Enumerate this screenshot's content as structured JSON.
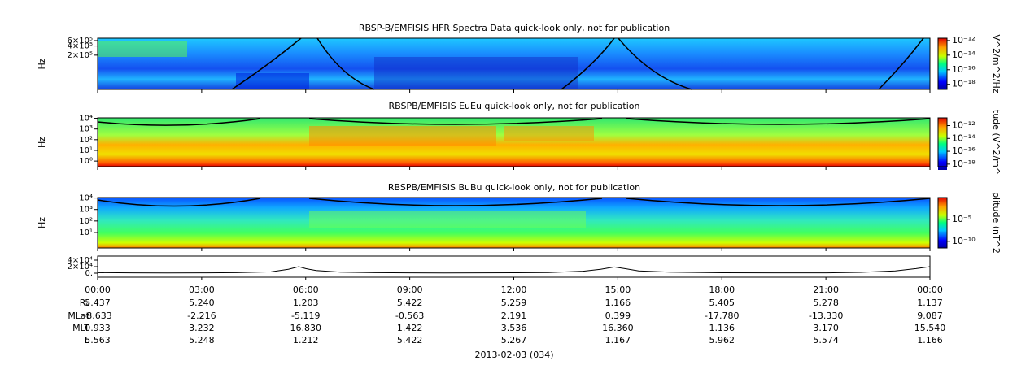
{
  "chart_data": [
    {
      "type": "spectrogram",
      "title": "RBSP-B/EMFISIS  HFR Spectra Data quick-look only, not for publication",
      "ylabel": "Hz",
      "log_y": true,
      "ylim": [
        15000,
        720000
      ],
      "yticks": [
        {
          "value": 200000,
          "label": "2×10⁵"
        },
        {
          "value": 400000,
          "label": "4×10⁵"
        },
        {
          "value": 600000,
          "label": "6×10⁵"
        }
      ],
      "colorbar": {
        "label": "V^2/m^2/Hz",
        "log": true,
        "clim": [
          2e-19,
          2.1e-12
        ],
        "ticks": [
          {
            "value": 1e-12,
            "label": "10⁻¹²"
          },
          {
            "value": 1e-14,
            "label": "10⁻¹⁴"
          },
          {
            "value": 1e-16,
            "label": "10⁻¹⁶"
          },
          {
            "value": 1e-18,
            "label": "10⁻¹⁸"
          }
        ]
      }
    },
    {
      "type": "spectrogram",
      "title": "RBSPB/EMFISIS  EuEu quick-look only, not for publication",
      "ylabel": "Hz",
      "log_y": true,
      "ylim": [
        0.3,
        11000
      ],
      "yticks": [
        {
          "value": 1,
          "label": "10⁰"
        },
        {
          "value": 10,
          "label": "10¹"
        },
        {
          "value": 100,
          "label": "10²"
        },
        {
          "value": 1000,
          "label": "10³"
        },
        {
          "value": 10000,
          "label": "10⁴"
        }
      ],
      "colorbar": {
        "label": "tude (V^2/m^",
        "log": true,
        "clim": [
          4e-19,
          1.6e-11
        ],
        "ticks": [
          {
            "value": 1e-12,
            "label": "10⁻¹²"
          },
          {
            "value": 1e-14,
            "label": "10⁻¹⁴"
          },
          {
            "value": 1e-16,
            "label": "10⁻¹⁶"
          },
          {
            "value": 1e-18,
            "label": "10⁻¹⁸"
          }
        ]
      }
    },
    {
      "type": "spectrogram",
      "title": "RBSPB/EMFISIS  BuBu quick-look only, not for publication",
      "ylabel": "Hz",
      "log_y": true,
      "ylim": [
        0.45,
        11000
      ],
      "yticks": [
        {
          "value": 10,
          "label": "10¹"
        },
        {
          "value": 100,
          "label": "10²"
        },
        {
          "value": 1000,
          "label": "10³"
        },
        {
          "value": 10000,
          "label": "10⁴"
        }
      ],
      "colorbar": {
        "label": "plitude (nT^2",
        "log": true,
        "clim": [
          3e-12,
          1
        ],
        "ticks": [
          {
            "value": 1e-05,
            "label": "10⁻⁵"
          },
          {
            "value": 1e-10,
            "label": "10⁻¹⁰"
          }
        ]
      }
    },
    {
      "type": "line",
      "color": "#000000",
      "ylim": [
        -12500,
        52500
      ],
      "yticks": [
        {
          "value": 0,
          "label": "0."
        },
        {
          "value": 20000,
          "label": "2×10⁴"
        },
        {
          "value": 40000,
          "label": "4×10⁴"
        }
      ],
      "x": [
        0,
        1,
        2,
        3,
        4,
        5,
        5.5,
        5.8,
        6,
        6.3,
        7,
        8,
        9,
        10,
        11,
        12,
        13,
        14,
        14.5,
        14.9,
        15.2,
        15.6,
        16.5,
        18,
        19.5,
        21,
        22,
        23,
        23.6,
        24
      ],
      "values": [
        1500,
        1000,
        800,
        900,
        1500,
        4000,
        12000,
        20000,
        14000,
        8000,
        3000,
        1500,
        1000,
        800,
        900,
        1200,
        2000,
        6000,
        12000,
        19000,
        14000,
        7000,
        3000,
        1200,
        900,
        1100,
        2500,
        7000,
        14000,
        20000
      ]
    }
  ],
  "time_axis": {
    "xlim": [
      0,
      24
    ],
    "label": "2013-02-03 (034)",
    "xticks": [
      {
        "value": 0,
        "label": "00:00"
      },
      {
        "value": 3,
        "label": "03:00"
      },
      {
        "value": 6,
        "label": "06:00"
      },
      {
        "value": 9,
        "label": "09:00"
      },
      {
        "value": 12,
        "label": "12:00"
      },
      {
        "value": 15,
        "label": "15:00"
      },
      {
        "value": 18,
        "label": "18:00"
      },
      {
        "value": 21,
        "label": "21:00"
      },
      {
        "value": 24,
        "label": "00:00"
      }
    ]
  },
  "ephemeris": {
    "rows": [
      {
        "label": "Rₑ",
        "values": [
          "5.437",
          "5.240",
          "1.203",
          "5.422",
          "5.259",
          "1.166",
          "5.405",
          "5.278",
          "1.137"
        ]
      },
      {
        "label": "MLat",
        "values": [
          "-8.633",
          "-2.216",
          "-5.119",
          "-0.563",
          "2.191",
          "0.399",
          "-17.780",
          "-13.330",
          "9.087"
        ]
      },
      {
        "label": "MLT",
        "values": [
          "0.933",
          "3.232",
          "16.830",
          "1.422",
          "3.536",
          "16.360",
          "1.136",
          "3.170",
          "15.540"
        ]
      },
      {
        "label": "L",
        "values": [
          "5.563",
          "5.248",
          "1.212",
          "5.422",
          "5.267",
          "1.167",
          "5.962",
          "5.574",
          "1.166"
        ]
      }
    ]
  }
}
